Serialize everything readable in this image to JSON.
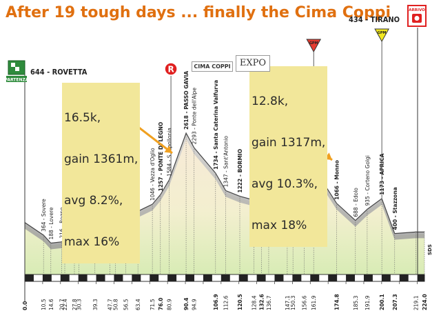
{
  "headline": "After 19 tough days ... finally the Cima Coppi",
  "start": {
    "label": "644 - ROVETTA",
    "sign": "PARTENZA"
  },
  "finish": {
    "label": "434 - TIRANO",
    "sign": "ARRIVO"
  },
  "cima_coppi_label": "CIMA COPPI",
  "expo_label": "EXPO",
  "right_edge_label": "SDS",
  "km_labels": [
    {
      "km": "0.0",
      "name": "",
      "alt": "",
      "bold": true
    },
    {
      "km": "10.5",
      "name": "364 - Sovere",
      "alt": ""
    },
    {
      "km": "14.6",
      "name": "188 - Lovere",
      "alt": ""
    },
    {
      "km": "20.7",
      "name": "216 - Rogno",
      "alt": ""
    },
    {
      "km": "22.4",
      "name": "221 - Darfo-Boario Terme",
      "alt": ""
    },
    {
      "km": "27.8",
      "name": "237 - Malegno",
      "alt": ""
    },
    {
      "km": "30.3",
      "name": "334 - Breno",
      "alt": ""
    },
    {
      "km": "39.3",
      "name": "364 - Capo di Ponte",
      "alt": ""
    },
    {
      "km": "47.7",
      "name": "425 - Cedegolo",
      "alt": ""
    },
    {
      "km": "50.8",
      "name": "510 - Malonno",
      "alt": ""
    },
    {
      "km": "56.5",
      "name": "688 - Edolo",
      "alt": ""
    },
    {
      "km": "63.4",
      "name": "892 - Bv. Di Monno",
      "alt": ""
    },
    {
      "km": "71.5",
      "name": "1046 - Vezza d'Oglio",
      "alt": ""
    },
    {
      "km": "76.0",
      "name": "1257 - PONTE DI LEGNO",
      "alt": "",
      "bold": true
    },
    {
      "km": "80.9",
      "name": "1584 - S. Apollonia",
      "alt": ""
    },
    {
      "km": "90.4",
      "name": "2618 - PASSO GAVIA",
      "alt": "",
      "bold": true
    },
    {
      "km": "94.9",
      "name": "2293 - Ponte dell'Alpe",
      "alt": ""
    },
    {
      "km": "106.9",
      "name": "1734 - Santa Caterina Valfurva",
      "alt": "",
      "bold": true
    },
    {
      "km": "112.6",
      "name": "1347 - Sant'Antonio",
      "alt": ""
    },
    {
      "km": "120.5",
      "name": "1222 - BORMIO",
      "alt": "",
      "bold": true
    },
    {
      "km": "128.4",
      "name": "1141 - Cepina",
      "alt": ""
    },
    {
      "km": "132.6",
      "name": "949 - Le Prese",
      "alt": "",
      "bold": true
    },
    {
      "km": "136.7",
      "name": "872 - Bv. di Sondalo",
      "alt": ""
    },
    {
      "km": "147.1",
      "name": "653 - Grosio",
      "alt": ""
    },
    {
      "km": "150.3",
      "name": "537 - Mazzo in Valtellina",
      "alt": ""
    },
    {
      "km": "156.6",
      "name": "",
      "alt": ""
    },
    {
      "km": "161.9",
      "name": "1854 - PASSO DEL MORTIROLO",
      "alt": ""
    },
    {
      "km": "174.8",
      "name": "1066 - Monno",
      "alt": "",
      "bold": true
    },
    {
      "km": "185.3",
      "name": "688 - Edolo",
      "alt": ""
    },
    {
      "km": "191.9",
      "name": "935 - Corteno Golgi",
      "alt": ""
    },
    {
      "km": "200.1",
      "name": "1173 - APRICA",
      "alt": "",
      "bold": true
    },
    {
      "km": "207.3",
      "name": "400 - Stazzona",
      "alt": "",
      "bold": true
    },
    {
      "km": "219.1",
      "name": "",
      "alt": ""
    },
    {
      "km": "224.0",
      "name": "",
      "alt": "",
      "bold": true
    }
  ],
  "axis_ticks": [
    "0",
    "10",
    "20",
    "30",
    "40",
    "50",
    "60",
    "70",
    "80",
    "90",
    "100",
    "110",
    "120",
    "130",
    "140",
    "150",
    "160",
    "170",
    "180",
    "190",
    "200",
    "210",
    "220"
  ],
  "annotations": [
    {
      "lines": [
        "16.5k,",
        "gain 1361m,",
        "avg 8.2%,",
        "max 16%"
      ]
    },
    {
      "lines": [
        "12.8k,",
        "gain 1317m,",
        "avg 10.3%,",
        "max 18%"
      ]
    }
  ],
  "gpm_label": "GPM",
  "r_label": "R",
  "chart_data": {
    "type": "area",
    "title": "After 19 tough days ... finally the Cima Coppi",
    "xlabel": "",
    "ylabel": "",
    "x_unit": "km",
    "xlim": [
      0,
      224
    ],
    "ylim": [
      0,
      2800
    ],
    "profile": [
      {
        "x": 0.0,
        "y": 644
      },
      {
        "x": 10.5,
        "y": 364
      },
      {
        "x": 14.6,
        "y": 188
      },
      {
        "x": 20.7,
        "y": 216
      },
      {
        "x": 22.4,
        "y": 221
      },
      {
        "x": 27.8,
        "y": 237
      },
      {
        "x": 30.3,
        "y": 334
      },
      {
        "x": 39.3,
        "y": 364
      },
      {
        "x": 47.7,
        "y": 425
      },
      {
        "x": 50.8,
        "y": 510
      },
      {
        "x": 56.5,
        "y": 688
      },
      {
        "x": 63.4,
        "y": 892
      },
      {
        "x": 71.5,
        "y": 1046
      },
      {
        "x": 76.0,
        "y": 1257
      },
      {
        "x": 80.9,
        "y": 1584
      },
      {
        "x": 90.4,
        "y": 2618
      },
      {
        "x": 94.9,
        "y": 2293
      },
      {
        "x": 106.9,
        "y": 1734
      },
      {
        "x": 112.6,
        "y": 1347
      },
      {
        "x": 120.5,
        "y": 1222
      },
      {
        "x": 128.4,
        "y": 1141
      },
      {
        "x": 132.6,
        "y": 949
      },
      {
        "x": 136.7,
        "y": 872
      },
      {
        "x": 147.1,
        "y": 653
      },
      {
        "x": 150.3,
        "y": 537
      },
      {
        "x": 161.9,
        "y": 1854
      },
      {
        "x": 174.8,
        "y": 1066
      },
      {
        "x": 185.3,
        "y": 688
      },
      {
        "x": 191.9,
        "y": 935
      },
      {
        "x": 200.1,
        "y": 1173
      },
      {
        "x": 207.3,
        "y": 400
      },
      {
        "x": 219.1,
        "y": 434
      },
      {
        "x": 224.0,
        "y": 434
      }
    ],
    "colors": {
      "headline": "#e07010",
      "note_bg": "#f2e79a",
      "arrow": "#f0a020",
      "climb_gray": "#b8b8b8",
      "fill_top": "#f6ead6",
      "fill_bottom": "#d9edb8"
    }
  }
}
